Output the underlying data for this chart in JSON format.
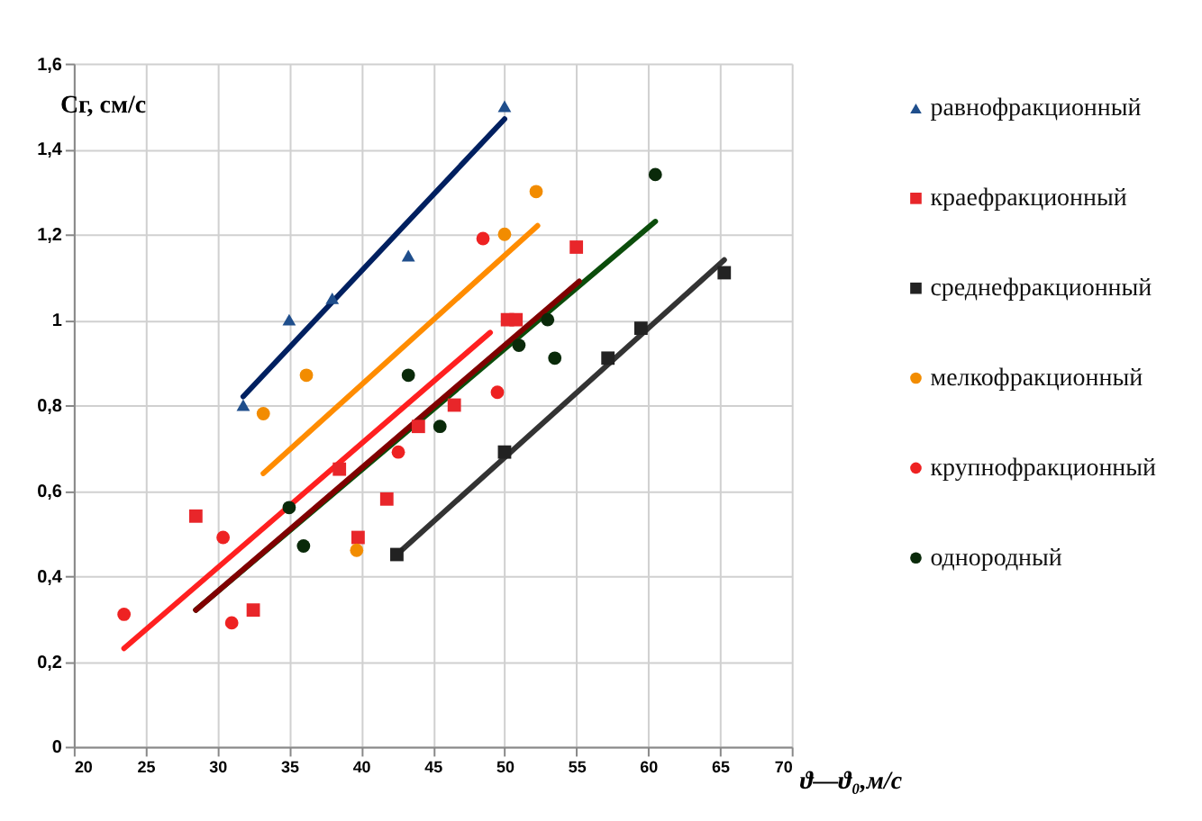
{
  "chart_data": {
    "type": "scatter",
    "xlabel": "ϑ—ϑ₀,м/с",
    "ylabel": "Cг, см/с",
    "xlim": [
      20,
      70
    ],
    "xticks": [
      20,
      25,
      30,
      35,
      40,
      45,
      50,
      55,
      60,
      65,
      70
    ],
    "ylim": [
      0,
      1.6
    ],
    "yticks": [
      0,
      {
        "value": 0.2,
        "label": "0,2"
      },
      {
        "value": 0.4,
        "label": "0,4"
      },
      {
        "value": 0.6,
        "label": "0,6"
      },
      {
        "value": 0.8,
        "label": "0,8"
      },
      1,
      {
        "value": 1.2,
        "label": "1,2"
      },
      {
        "value": 1.4,
        "label": "1,4"
      },
      {
        "value": 1.6,
        "label": "1,6"
      }
    ],
    "grid": true,
    "legend": "right",
    "series": [
      {
        "name": "равнофракционный",
        "color": "#1f4e8c",
        "marker": "triangle",
        "x": [
          31.8,
          35,
          38,
          43.3,
          50
        ],
        "values": [
          0.8,
          1.0,
          1.05,
          1.15,
          1.5
        ]
      },
      {
        "name": "краефракционный",
        "color": "#e8262a",
        "marker": "square",
        "x": [
          28.5,
          32.5,
          38.5,
          39.8,
          41.8,
          44,
          46.5,
          50.2,
          50.8,
          55
        ],
        "values": [
          0.54,
          0.32,
          0.65,
          0.49,
          0.58,
          0.75,
          0.8,
          1.0,
          1.0,
          1.17
        ]
      },
      {
        "name": "среднефракционный",
        "color": "#222222",
        "marker": "square",
        "x": [
          42.5,
          50,
          57.2,
          59.5,
          65.3
        ],
        "values": [
          0.45,
          0.69,
          0.91,
          0.98,
          1.11
        ]
      },
      {
        "name": "мелкофракционный",
        "color": "#f28c00",
        "marker": "circle",
        "x": [
          33.2,
          36.2,
          39.7,
          50,
          52.2
        ],
        "values": [
          0.78,
          0.87,
          0.46,
          1.2,
          1.3
        ]
      },
      {
        "name": "крупнофракционный",
        "color": "#ee2222",
        "marker": "circle",
        "x": [
          23.5,
          30.4,
          31,
          42.6,
          48.5,
          49.5
        ],
        "values": [
          0.31,
          0.49,
          0.29,
          0.69,
          1.19,
          0.83
        ]
      },
      {
        "name": "однородный",
        "color": "#0a2a0a",
        "marker": "circle",
        "x": [
          35,
          36,
          43.3,
          45.5,
          51,
          53,
          53.5,
          60.5
        ],
        "values": [
          0.56,
          0.47,
          0.87,
          0.75,
          0.94,
          1.0,
          0.91,
          1.34
        ]
      },
      {
        "type": "line",
        "color": "#002060",
        "marker": "none",
        "x": [
          31.8,
          50
        ],
        "values": [
          0.82,
          1.47
        ]
      },
      {
        "type": "line",
        "color": "#ff8c00",
        "marker": "none",
        "x": [
          33.2,
          52.3
        ],
        "values": [
          0.64,
          1.22
        ]
      },
      {
        "type": "line",
        "color": "#ff2020",
        "marker": "none",
        "x": [
          23.5,
          49
        ],
        "values": [
          0.23,
          0.97
        ]
      },
      {
        "type": "line",
        "color": "#0b4d0b",
        "marker": "none",
        "x": [
          28.5,
          60.5
        ],
        "values": [
          0.32,
          1.23
        ]
      },
      {
        "type": "line",
        "color": "#800000",
        "marker": "none",
        "x": [
          28.5,
          55.2
        ],
        "values": [
          0.32,
          1.09
        ]
      },
      {
        "type": "line",
        "color": "#333333",
        "marker": "none",
        "x": [
          42.5,
          65.3
        ],
        "values": [
          0.45,
          1.14
        ]
      }
    ]
  }
}
